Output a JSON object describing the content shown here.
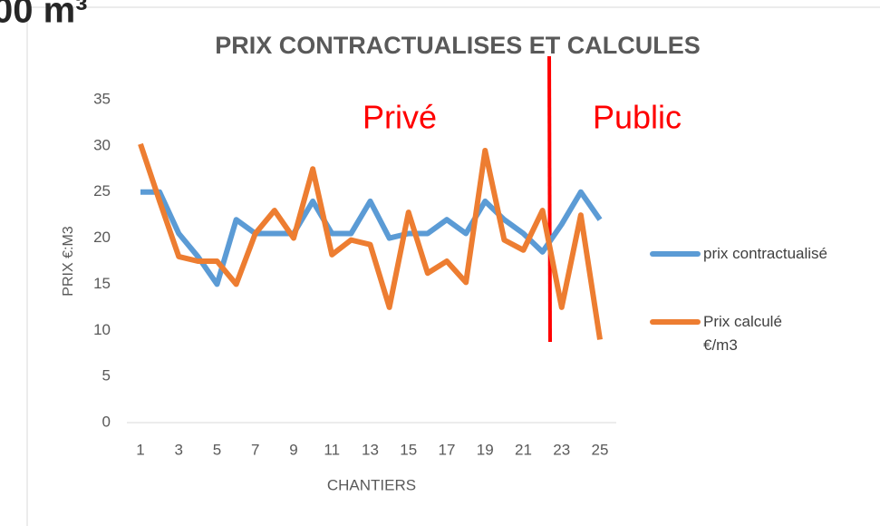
{
  "heading_fragment": "00 m³",
  "chart_data": {
    "type": "line",
    "title": "PRIX CONTRACTUALISES ET CALCULES",
    "x_label": "CHANTIERS",
    "y_label": "PRIX €:M3",
    "categories": [
      "1",
      null,
      "3",
      null,
      "5",
      null,
      "7",
      null,
      "9",
      null,
      "11",
      null,
      "13",
      null,
      "15",
      null,
      "17",
      null,
      "19",
      null,
      "21",
      null,
      "23",
      null,
      "25"
    ],
    "series": [
      {
        "name": "prix contractualisé",
        "color": "#5b9bd5",
        "values": [
          25,
          25,
          20.5,
          18,
          15,
          22,
          20.5,
          20.5,
          20.5,
          24,
          20.5,
          20.5,
          24,
          20,
          20.5,
          20.5,
          22,
          20.5,
          24,
          22,
          20.5,
          18.5,
          21.5,
          25,
          22
        ]
      },
      {
        "name": "Prix calculé €/m3",
        "color": "#ed7d31",
        "values": [
          30.2,
          24,
          18,
          17.5,
          17.5,
          15,
          20.5,
          23,
          20,
          27.5,
          18.2,
          19.8,
          19.3,
          12.5,
          22.8,
          16.2,
          17.5,
          15.2,
          29.5,
          19.8,
          18.7,
          23,
          12.5,
          22.5,
          9
        ]
      }
    ],
    "annotations": [
      {
        "text": "Privé",
        "color": "#ff0000"
      },
      {
        "text": "Public",
        "color": "#ff0000"
      }
    ],
    "ylim": [
      0,
      35
    ],
    "yticks": [
      0,
      5,
      10,
      15,
      20,
      25,
      30,
      35
    ],
    "grid": false,
    "legend": "right"
  }
}
